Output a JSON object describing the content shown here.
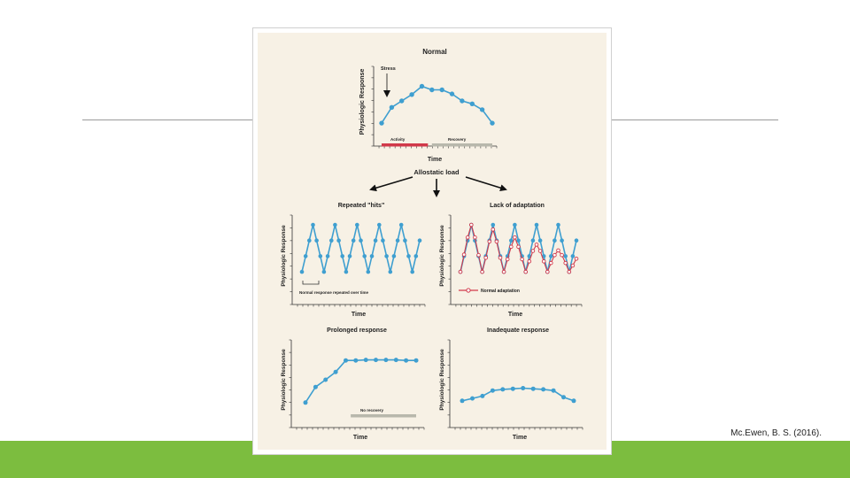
{
  "citation": "Mc.Ewen, B. S. (2016).",
  "colors": {
    "blue": "#3f9fd0",
    "red": "#d1394a",
    "gray_bar": "#b8b8ac",
    "accent_green": "#7cbd3f",
    "panel_bg": "#f7f1e5"
  },
  "center": {
    "label": "Allostatic load"
  },
  "chart_data": [
    {
      "id": "normal",
      "type": "line",
      "title": "Normal",
      "xlabel": "Time",
      "ylabel": "Physiologic Response",
      "x": [
        0,
        1,
        2,
        3,
        4,
        5,
        6,
        7,
        8,
        9,
        10,
        11
      ],
      "ylim": [
        0,
        10
      ],
      "series": [
        {
          "name": "Normal",
          "color": "blue",
          "values": [
            1.5,
            4.2,
            5.3,
            6.4,
            7.8,
            7.2,
            7.2,
            6.5,
            5.3,
            4.8,
            3.8,
            1.5
          ]
        }
      ],
      "annotations": {
        "stress_label": "Stress"
      },
      "bars": [
        {
          "label": "Activity",
          "from": 0,
          "to": 4.6,
          "color": "red"
        },
        {
          "label": "Recovery",
          "from": 5.0,
          "to": 11,
          "color": "gray_bar"
        }
      ]
    },
    {
      "id": "repeated-hits",
      "type": "line",
      "title": "Repeated \"hits\"",
      "xlabel": "Time",
      "ylabel": "Physiologic Response",
      "x": [
        0,
        1,
        2,
        3,
        4,
        5,
        6,
        7,
        8,
        9,
        10,
        11,
        12,
        13,
        14,
        15,
        16,
        17,
        18,
        19,
        20,
        21,
        22,
        23,
        24,
        25,
        26,
        27,
        28,
        29,
        30,
        31,
        32
      ],
      "ylim": [
        0,
        10
      ],
      "series": [
        {
          "name": "Repeated hits",
          "color": "blue",
          "values": [
            1,
            4,
            7,
            10,
            7,
            4,
            1,
            4,
            7,
            10,
            7,
            4,
            1,
            4,
            7,
            10,
            7,
            4,
            1,
            4,
            7,
            10,
            7,
            4,
            1,
            4,
            7,
            10,
            7,
            4,
            1,
            4,
            7
          ]
        }
      ],
      "annotations": {
        "bracket_label": "Normal response repeated over time"
      }
    },
    {
      "id": "lack-of-adaptation",
      "type": "line",
      "title": "Lack of adaptation",
      "xlabel": "Time",
      "ylabel": "Physiologic Response",
      "x": [
        0,
        1,
        2,
        3,
        4,
        5,
        6,
        7,
        8,
        9,
        10,
        11,
        12,
        13,
        14,
        15,
        16,
        17,
        18,
        19,
        20,
        21,
        22,
        23,
        24,
        25,
        26,
        27,
        28,
        29,
        30,
        31,
        32
      ],
      "ylim": [
        0,
        10
      ],
      "series": [
        {
          "name": "Lack of adaptation",
          "color": "blue",
          "values": [
            1,
            4,
            7,
            10,
            7,
            4,
            1,
            4,
            7,
            10,
            7,
            4,
            1,
            4,
            7,
            10,
            7,
            4,
            1,
            4,
            7,
            10,
            7,
            4,
            1,
            4,
            7,
            10,
            7,
            4,
            1,
            4,
            7
          ]
        },
        {
          "name": "Normal adaptation",
          "color": "red",
          "values": [
            1,
            4.3,
            7.6,
            10,
            7.6,
            4.2,
            1,
            3.7,
            6.8,
            9.1,
            6.8,
            3.7,
            1,
            3.4,
            5.8,
            7.6,
            5.8,
            3.4,
            1,
            3,
            5,
            6.2,
            5,
            3,
            1,
            2.7,
            4.2,
            5.1,
            4.2,
            2.7,
            1,
            2.2,
            3.5
          ]
        }
      ],
      "legend": "Normal adaptation"
    },
    {
      "id": "prolonged-response",
      "type": "line",
      "title": "Prolonged response",
      "xlabel": "Time",
      "ylabel": "Physiologic Response",
      "x": [
        0,
        1,
        2,
        3,
        4,
        5,
        6,
        7,
        8,
        9,
        10,
        11
      ],
      "ylim": [
        0,
        10
      ],
      "series": [
        {
          "name": "Prolonged",
          "color": "blue",
          "values": [
            1.2,
            3.8,
            5,
            6.3,
            8.2,
            8.2,
            8.3,
            8.3,
            8.3,
            8.3,
            8.2,
            8.2
          ]
        }
      ],
      "bars": [
        {
          "label": "No recovery",
          "from": 4.5,
          "to": 11,
          "color": "gray_bar"
        }
      ]
    },
    {
      "id": "inadequate-response",
      "type": "line",
      "title": "Inadequate response",
      "xlabel": "Time",
      "ylabel": "Physiologic Response",
      "x": [
        0,
        1,
        2,
        3,
        4,
        5,
        6,
        7,
        8,
        9,
        10,
        11
      ],
      "ylim": [
        0,
        10
      ],
      "series": [
        {
          "name": "Inadequate",
          "color": "blue",
          "values": [
            1.5,
            1.9,
            2.3,
            3.2,
            3.4,
            3.5,
            3.6,
            3.5,
            3.4,
            3.2,
            2.1,
            1.5
          ]
        }
      ]
    }
  ]
}
